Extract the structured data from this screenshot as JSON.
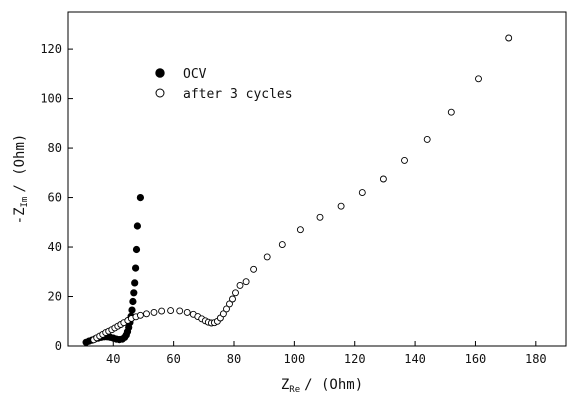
{
  "chart_data": {
    "type": "scatter",
    "xlabel": {
      "prefix": "Z",
      "sub": "Re",
      "suffix": "/ (Ohm)"
    },
    "ylabel": {
      "prefix": "-Z",
      "sub": "Im",
      "suffix": "/ (Ohm)"
    },
    "xlim": [
      25,
      190
    ],
    "ylim": [
      0,
      135
    ],
    "xticks": [
      40,
      60,
      80,
      100,
      120,
      140,
      160,
      180
    ],
    "yticks": [
      0,
      20,
      40,
      60,
      80,
      100,
      120
    ],
    "grid": false,
    "legend_position": "upper-left",
    "series": [
      {
        "name": "OCV",
        "marker": "filled-circle",
        "color": "#000000",
        "points": [
          [
            31.0,
            1.5
          ],
          [
            32.0,
            2.0
          ],
          [
            33.0,
            2.4
          ],
          [
            34.0,
            2.9
          ],
          [
            35.0,
            3.2
          ],
          [
            36.0,
            3.5
          ],
          [
            37.0,
            3.7
          ],
          [
            38.0,
            3.7
          ],
          [
            39.0,
            3.5
          ],
          [
            40.0,
            3.2
          ],
          [
            41.0,
            2.8
          ],
          [
            42.0,
            2.6
          ],
          [
            43.0,
            2.8
          ],
          [
            43.8,
            3.5
          ],
          [
            44.3,
            4.5
          ],
          [
            44.7,
            5.8
          ],
          [
            45.1,
            7.5
          ],
          [
            45.5,
            9.5
          ],
          [
            45.9,
            12.0
          ],
          [
            46.2,
            14.5
          ],
          [
            46.5,
            18.0
          ],
          [
            46.8,
            21.5
          ],
          [
            47.1,
            25.5
          ],
          [
            47.4,
            31.5
          ],
          [
            47.7,
            39.0
          ],
          [
            48.0,
            48.5
          ],
          [
            49.0,
            60.0
          ]
        ]
      },
      {
        "name": "after 3 cycles",
        "marker": "open-circle",
        "color": "#000000",
        "points": [
          [
            33.5,
            2.5
          ],
          [
            34.5,
            3.3
          ],
          [
            35.5,
            4.0
          ],
          [
            36.5,
            4.7
          ],
          [
            37.5,
            5.4
          ],
          [
            38.5,
            6.0
          ],
          [
            39.5,
            6.6
          ],
          [
            40.5,
            7.3
          ],
          [
            41.5,
            8.0
          ],
          [
            42.5,
            8.7
          ],
          [
            43.5,
            9.4
          ],
          [
            44.8,
            10.3
          ],
          [
            46.0,
            11.1
          ],
          [
            47.5,
            11.8
          ],
          [
            49.0,
            12.4
          ],
          [
            51.0,
            13.0
          ],
          [
            53.5,
            13.6
          ],
          [
            56.0,
            14.1
          ],
          [
            59.0,
            14.3
          ],
          [
            62.0,
            14.2
          ],
          [
            64.5,
            13.6
          ],
          [
            66.5,
            12.8
          ],
          [
            68.0,
            11.9
          ],
          [
            69.3,
            11.0
          ],
          [
            70.5,
            10.2
          ],
          [
            71.5,
            9.6
          ],
          [
            72.5,
            9.3
          ],
          [
            73.5,
            9.4
          ],
          [
            74.5,
            10.0
          ],
          [
            75.5,
            11.3
          ],
          [
            76.5,
            13.0
          ],
          [
            77.5,
            15.0
          ],
          [
            78.5,
            17.0
          ],
          [
            79.5,
            19.0
          ],
          [
            80.5,
            21.5
          ],
          [
            82.0,
            24.5
          ],
          [
            84.0,
            26.0
          ],
          [
            86.5,
            31.0
          ],
          [
            91.0,
            36.0
          ],
          [
            96.0,
            41.0
          ],
          [
            102.0,
            47.0
          ],
          [
            108.5,
            52.0
          ],
          [
            115.5,
            56.5
          ],
          [
            122.5,
            62.0
          ],
          [
            129.5,
            67.5
          ],
          [
            136.5,
            75.0
          ],
          [
            144.0,
            83.5
          ],
          [
            152.0,
            94.5
          ],
          [
            161.0,
            108.0
          ],
          [
            171.0,
            124.5
          ]
        ]
      }
    ]
  }
}
